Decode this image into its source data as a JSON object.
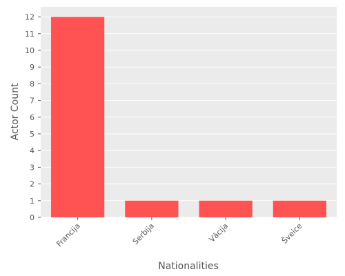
{
  "chart_data": {
    "type": "bar",
    "title": "",
    "xlabel": "Nationalities",
    "ylabel": "Actor Count",
    "categories": [
      "Francija",
      "Serbija",
      "Vācija",
      "Šveice"
    ],
    "values": [
      12,
      1,
      1,
      1
    ],
    "ylim": [
      0,
      12.6
    ],
    "yticks": [
      "0",
      "1",
      "2",
      "3",
      "4",
      "5",
      "6",
      "7",
      "8",
      "9",
      "10",
      "11",
      "12"
    ],
    "grid": true,
    "legend": "none",
    "colors": {
      "bar": "#ff5252",
      "plot_background": "#ebebeb",
      "grid": "#ffffff",
      "text": "#555555"
    }
  }
}
